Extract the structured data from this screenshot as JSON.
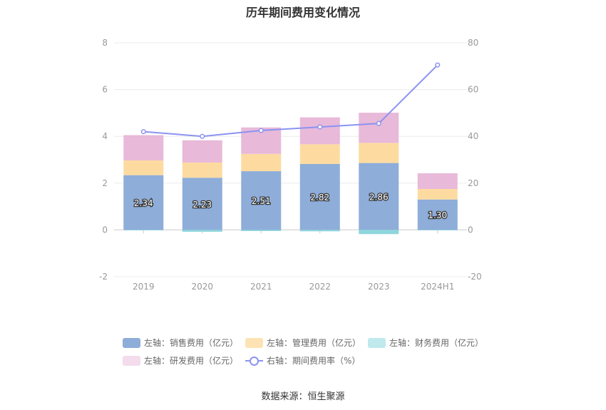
{
  "title": "历年期间费用变化情况",
  "source": "数据来源：恒生聚源",
  "chart_data": {
    "type": "bar",
    "stacked": true,
    "categories": [
      "2019",
      "2020",
      "2021",
      "2022",
      "2023",
      "2024H1"
    ],
    "left_axis": {
      "ylim": [
        -2,
        8
      ],
      "ticks": [
        "-2",
        "0",
        "2",
        "4",
        "6",
        "8"
      ]
    },
    "right_axis": {
      "ylim": [
        -20,
        80
      ],
      "ticks": [
        "-20",
        "0",
        "20",
        "40",
        "60",
        "80"
      ]
    },
    "grid": true,
    "legend_position": "bottom",
    "series": [
      {
        "name": "左轴：销售费用（亿元）",
        "type": "bar",
        "axis": "left",
        "color": "#8eadd9",
        "values": [
          2.34,
          2.23,
          2.51,
          2.82,
          2.86,
          1.3
        ],
        "labels": [
          "2.34",
          "2.23",
          "2.51",
          "2.82",
          "2.86",
          "1.30"
        ]
      },
      {
        "name": "左轴：管理费用（亿元）",
        "type": "bar",
        "axis": "left",
        "color": "#fddba0",
        "values": [
          0.63,
          0.65,
          0.74,
          0.84,
          0.86,
          0.45
        ]
      },
      {
        "name": "左轴：财务费用（亿元）",
        "type": "bar",
        "axis": "left",
        "color": "#8dd6dd",
        "values": [
          -0.02,
          -0.08,
          -0.05,
          -0.06,
          -0.18,
          -0.02
        ]
      },
      {
        "name": "左轴：研发费用（亿元）",
        "type": "bar",
        "axis": "left",
        "color": "#e8b9d9",
        "values": [
          1.08,
          0.95,
          1.13,
          1.15,
          1.29,
          0.67
        ]
      },
      {
        "name": "右轴：期间费用率（%）",
        "type": "line",
        "axis": "right",
        "color": "#8b93f0",
        "values": [
          42.0,
          40.0,
          42.5,
          44.0,
          45.5,
          70.5
        ]
      }
    ]
  },
  "legend": [
    {
      "label": "左轴：销售费用（亿元）",
      "color": "#8eadd9",
      "kind": "bar"
    },
    {
      "label": "左轴：管理费用（亿元）",
      "color": "#fde3b4",
      "kind": "bar"
    },
    {
      "label": "左轴：财务费用（亿元）",
      "color": "#bfe9ec",
      "kind": "bar"
    },
    {
      "label": "左轴：研发费用（亿元）",
      "color": "#f3dcec",
      "kind": "bar"
    },
    {
      "label": "右轴：期间费用率（%）",
      "color": "#8b93f0",
      "kind": "line"
    }
  ]
}
